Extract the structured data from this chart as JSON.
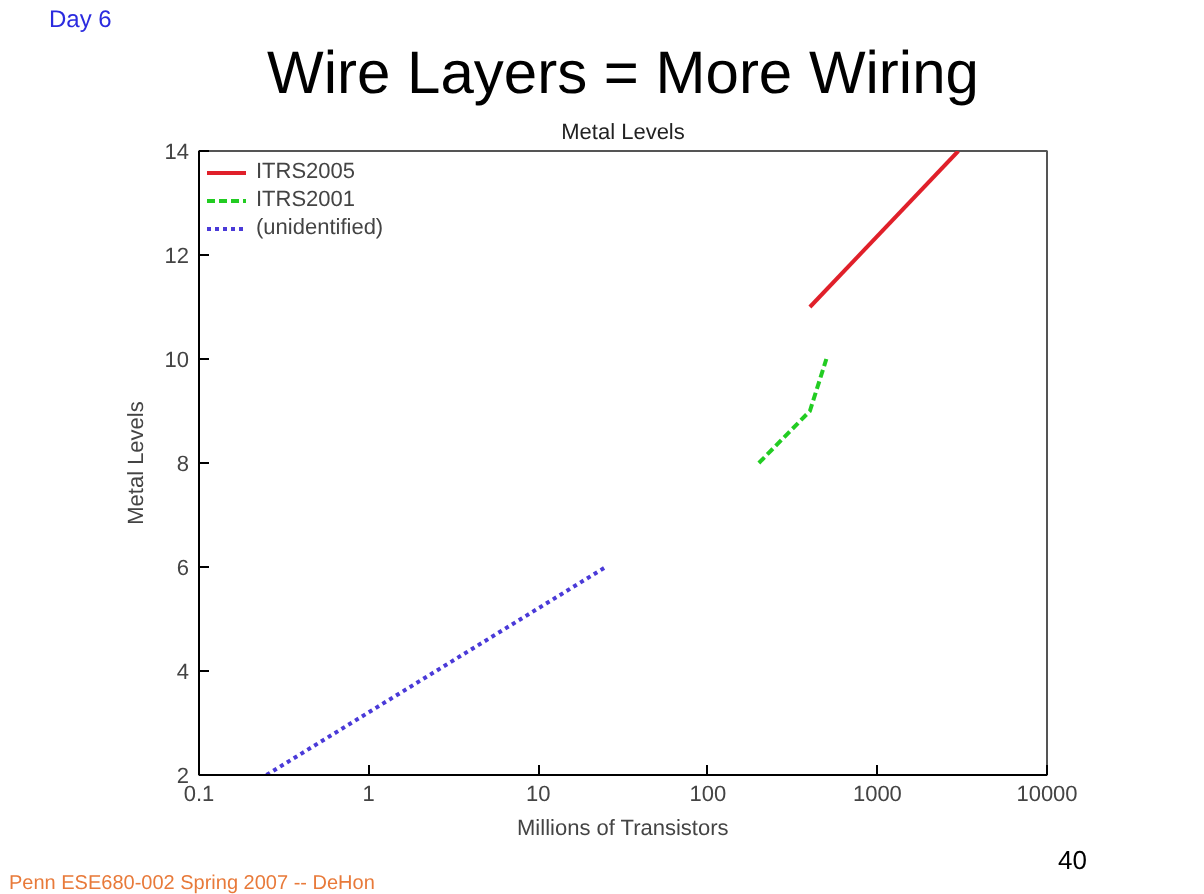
{
  "chart_data": {
    "type": "line",
    "title": "Wire Layers = More Wiring",
    "subtitle": "Metal Levels",
    "xlabel": "Millions of Transistors",
    "ylabel": "Metal Levels",
    "annotations": [
      "Day 6",
      "Penn ESE680-002 Spring 2007 -- DeHon",
      "40"
    ],
    "log": "x",
    "xlim": [
      0.1,
      10000
    ],
    "ylim": [
      2,
      14
    ],
    "xticks": [
      0.1,
      1,
      10,
      100,
      1000,
      10000
    ],
    "yticks": [
      2,
      4,
      6,
      8,
      10,
      12,
      14
    ],
    "grid": false,
    "legend": "top left",
    "series": [
      {
        "name": "ITRS2005",
        "color": "#e0202a",
        "line_style": "solid",
        "x": [
          400,
          3000
        ],
        "values": [
          11,
          14
        ]
      },
      {
        "name": "ITRS2001",
        "color": "#22cc22",
        "line_style": "dashed",
        "x": [
          200,
          400,
          500
        ],
        "values": [
          8,
          9,
          10
        ]
      },
      {
        "name": "(unidentified)",
        "color": "#4a3ad8",
        "line_style": "dotted",
        "x": [
          0.25,
          25
        ],
        "values": [
          2,
          6
        ]
      }
    ]
  }
}
